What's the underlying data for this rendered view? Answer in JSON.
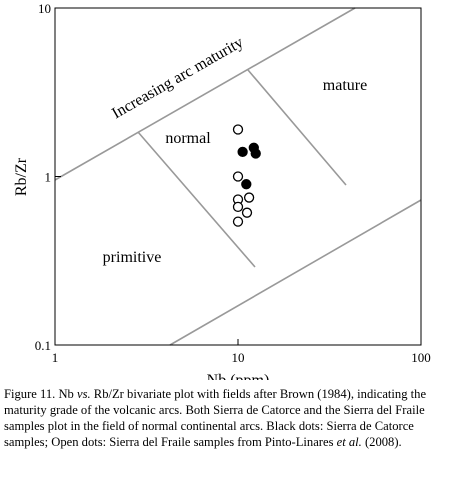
{
  "chart_data": {
    "type": "scatter",
    "xlabel": "Nb (ppm)",
    "ylabel": "Rb/Zr",
    "xlim": [
      1,
      100
    ],
    "ylim": [
      0.1,
      10
    ],
    "log_x": true,
    "log_y": true,
    "xticks": [
      1,
      10,
      100
    ],
    "yticks": [
      0.1,
      1,
      10
    ],
    "annotations": [
      "Increasing arc maturity",
      "normal",
      "mature",
      "primitive"
    ],
    "series": [
      {
        "color": "#000000",
        "filled": false,
        "x": [
          10,
          10,
          10,
          10,
          11.5,
          11.2,
          10
        ],
        "values": [
          1.9,
          1.0,
          0.73,
          0.66,
          0.75,
          0.61,
          0.54
        ]
      },
      {
        "color": "#000000",
        "filled": true,
        "x": [
          10.6,
          12.2,
          12.5,
          11.1
        ],
        "values": [
          1.4,
          1.48,
          1.37,
          0.9
        ]
      }
    ]
  },
  "caption": [
    "Figure 11. Nb ",
    "vs.",
    " Rb/Zr bivariate plot with fields after Brown (1984), indicating the maturity grade of the volcanic arcs. Both Sierra de Catorce and the Sierra del Fraile samples plot in the field of normal continental arcs. Black dots: Sierra de Catorce samples; Open dots: Sierra del Fraile samples from Pinto-Linares ",
    "et al.",
    " (2008)."
  ]
}
